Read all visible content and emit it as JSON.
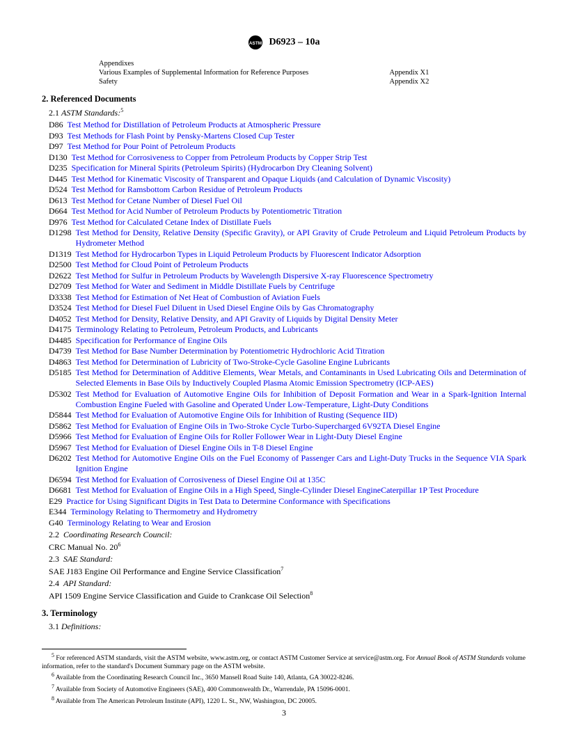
{
  "header": {
    "designation": "D6923 – 10a"
  },
  "appendixes": {
    "heading": "Appendixes",
    "rows": [
      {
        "left": "Various Examples of Supplemental Information for Reference Purposes",
        "right": "Appendix X1"
      },
      {
        "left": "Safety",
        "right": "Appendix X2"
      }
    ]
  },
  "section2": {
    "heading": "2.  Referenced Documents",
    "sub1": "2.1",
    "sub1_label": "ASTM Standards:",
    "sub1_sup": "5",
    "refs": [
      {
        "code": "D86",
        "title": "Test Method for Distillation of Petroleum Products at Atmospheric Pressure"
      },
      {
        "code": "D93",
        "title": "Test Methods for Flash Point by Pensky-Martens Closed Cup Tester"
      },
      {
        "code": "D97",
        "title": "Test Method for Pour Point of Petroleum Products"
      },
      {
        "code": "D130",
        "title": "Test Method for Corrosiveness to Copper from Petroleum Products by Copper Strip Test"
      },
      {
        "code": "D235",
        "title": "Specification for Mineral Spirits (Petroleum Spirits) (Hydrocarbon Dry Cleaning Solvent)"
      },
      {
        "code": "D445",
        "title": "Test Method for Kinematic Viscosity of Transparent and Opaque Liquids (and Calculation of Dynamic Viscosity)"
      },
      {
        "code": "D524",
        "title": "Test Method for Ramsbottom Carbon Residue of Petroleum Products"
      },
      {
        "code": "D613",
        "title": "Test Method for Cetane Number of Diesel Fuel Oil"
      },
      {
        "code": "D664",
        "title": "Test Method for Acid Number of Petroleum Products by Potentiometric Titration"
      },
      {
        "code": "D976",
        "title": "Test Method for Calculated Cetane Index of Distillate Fuels"
      },
      {
        "code": "D1298",
        "title": "Test Method for Density, Relative Density (Specific Gravity), or API Gravity of Crude Petroleum and Liquid Petroleum Products by Hydrometer Method",
        "justify": true
      },
      {
        "code": "D1319",
        "title": "Test Method for Hydrocarbon Types in Liquid Petroleum Products by Fluorescent Indicator Adsorption"
      },
      {
        "code": "D2500",
        "title": "Test Method for Cloud Point of Petroleum Products"
      },
      {
        "code": "D2622",
        "title": "Test Method for Sulfur in Petroleum Products by Wavelength Dispersive X-ray Fluorescence Spectrometry"
      },
      {
        "code": "D2709",
        "title": "Test Method for Water and Sediment in Middle Distillate Fuels by Centrifuge"
      },
      {
        "code": "D3338",
        "title": "Test Method for Estimation of Net Heat of Combustion of Aviation Fuels"
      },
      {
        "code": "D3524",
        "title": "Test Method for Diesel Fuel Diluent in Used Diesel Engine Oils by Gas Chromatography"
      },
      {
        "code": "D4052",
        "title": "Test Method for Density, Relative Density, and API Gravity of Liquids by Digital Density Meter"
      },
      {
        "code": "D4175",
        "title": "Terminology Relating to Petroleum, Petroleum Products, and Lubricants"
      },
      {
        "code": "D4485",
        "title": "Specification for Performance of Engine Oils"
      },
      {
        "code": "D4739",
        "title": "Test Method for Base Number Determination by Potentiometric Hydrochloric Acid Titration"
      },
      {
        "code": "D4863",
        "title": "Test Method for Determination of Lubricity of Two-Stroke-Cycle Gasoline Engine Lubricants"
      },
      {
        "code": "D5185",
        "title": "Test Method for Determination of Additive Elements, Wear Metals, and Contaminants in Used Lubricating Oils and Determination of Selected Elements in Base Oils by Inductively Coupled Plasma Atomic Emission Spectrometry (ICP-AES)",
        "justify": true
      },
      {
        "code": "D5302",
        "title": "Test Method for Evaluation of Automotive Engine Oils for Inhibition of Deposit Formation and Wear in a Spark-Ignition Internal Combustion Engine Fueled with Gasoline and Operated Under Low-Temperature, Light-Duty Conditions",
        "justify": true
      },
      {
        "code": "D5844",
        "title": "Test Method for Evaluation of Automotive Engine Oils for Inhibition of Rusting (Sequence IID)"
      },
      {
        "code": "D5862",
        "title": "Test Method for Evaluation of Engine Oils in Two-Stroke Cycle Turbo-Supercharged 6V92TA Diesel Engine"
      },
      {
        "code": "D5966",
        "title": "Test Method for Evaluation of Engine Oils for Roller Follower Wear in Light-Duty Diesel Engine"
      },
      {
        "code": "D5967",
        "title": "Test Method for Evaluation of Diesel Engine Oils in T-8 Diesel Engine"
      },
      {
        "code": "D6202",
        "title": "Test Method for Automotive Engine Oils on the Fuel Economy of Passenger Cars and Light-Duty Trucks in the Sequence VIA Spark Ignition Engine",
        "justify": true
      },
      {
        "code": "D6594",
        "title": "Test Method for Evaluation of Corrosiveness of Diesel Engine Oil at 135C"
      },
      {
        "code": "D6681",
        "title": "Test Method for Evaluation of Engine Oils in a High Speed, Single-Cylinder Diesel EngineCaterpillar 1P Test Procedure"
      },
      {
        "code": "E29",
        "title": "Practice for Using Significant Digits in Test Data to Determine Conformance with Specifications"
      },
      {
        "code": "E344",
        "title": "Terminology Relating to Thermometry and Hydrometry"
      },
      {
        "code": "G40",
        "title": "Terminology Relating to Wear and Erosion"
      }
    ],
    "sub2": {
      "num": "2.2",
      "label": "Coordinating Research Council:",
      "line": "CRC Manual  No. 20",
      "sup": "6"
    },
    "sub3": {
      "num": "2.3",
      "label": "SAE Standard:",
      "line": "SAE J183  Engine Oil Performance and Engine Service Classification",
      "sup": "7"
    },
    "sub4": {
      "num": "2.4",
      "label": "API Standard:",
      "line": "API 1509  Engine Service Classification and Guide to Crankcase Oil Selection",
      "sup": "8"
    }
  },
  "section3": {
    "heading": "3. Terminology",
    "sub1": "3.1",
    "sub1_label": "Definitions:"
  },
  "footnotes": [
    {
      "sup": "5",
      "text": "For referenced ASTM standards, visit the ASTM website, www.astm.org, or contact ASTM Customer Service at service@astm.org. For ",
      "italic": "Annual Book of ASTM Standards",
      "text2": " volume information, refer to the standard's Document Summary page on the ASTM website."
    },
    {
      "sup": "6",
      "text": "Available from the Coordinating Research Council Inc., 3650 Mansell Road Suite 140, Atlanta, GA 30022-8246."
    },
    {
      "sup": "7",
      "text": "Available from Society of Automotive Engineers (SAE), 400 Commonwealth Dr., Warrendale, PA 15096-0001."
    },
    {
      "sup": "8",
      "text": "Available from The American Petroleum Institute (API), 1220 L. St., NW, Washington, DC 20005."
    }
  ],
  "page_number": "3"
}
